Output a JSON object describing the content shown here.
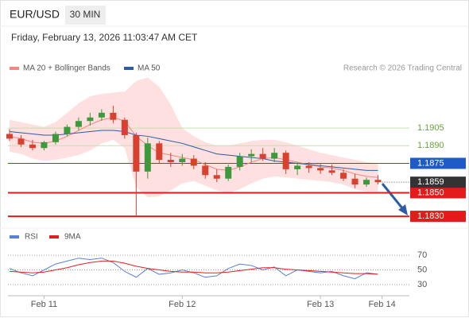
{
  "chart_data": {
    "type": "candlestick",
    "title": "EUR/USD",
    "timeframe": "30 MIN",
    "timestamp": "Friday, February 13, 2026 11:03:47 AM CET",
    "copyright": "Research © 2026 Trading Central",
    "x": [
      -6,
      -4,
      -2,
      0,
      2,
      4,
      6,
      8,
      10,
      12,
      14,
      16,
      18,
      20,
      22,
      24,
      26,
      28,
      30,
      32,
      34,
      36,
      38,
      40,
      42,
      44,
      46,
      48,
      50,
      52,
      54,
      56,
      58
    ],
    "xlim": [
      -6,
      60
    ],
    "xticks": [
      {
        "value": 0,
        "label": "Feb 11"
      },
      {
        "value": 24,
        "label": "Feb 12"
      },
      {
        "value": 48,
        "label": "Feb 13"
      },
      {
        "value": 58.7,
        "label": "Feb 14"
      }
    ],
    "ylim": [
      1.1826,
      1.1926
    ],
    "up_color": "#3c9a3c",
    "down_color": "#d9412f",
    "open": [
      1.19,
      1.1896,
      1.1891,
      1.1888,
      1.1893,
      1.19,
      1.1906,
      1.1911,
      1.1914,
      1.1918,
      1.1912,
      1.1899,
      1.1868,
      1.1892,
      1.1878,
      1.1876,
      1.1879,
      1.1873,
      1.1865,
      1.1862,
      1.1872,
      1.1881,
      1.1883,
      1.1879,
      1.1884,
      1.187,
      1.1873,
      1.1871,
      1.1869,
      1.1867,
      1.1862,
      1.1857,
      1.1861
    ],
    "high": [
      1.1904,
      1.1899,
      1.1895,
      1.1894,
      1.1902,
      1.1908,
      1.1914,
      1.1918,
      1.1921,
      1.1924,
      1.1914,
      1.1901,
      1.1897,
      1.1894,
      1.1884,
      1.1883,
      1.1882,
      1.1876,
      1.187,
      1.1874,
      1.1884,
      1.1887,
      1.1888,
      1.1888,
      1.1886,
      1.1876,
      1.1876,
      1.1875,
      1.1874,
      1.187,
      1.1866,
      1.1863,
      1.1865
    ],
    "low": [
      1.1894,
      1.1889,
      1.1886,
      1.1886,
      1.1891,
      1.1898,
      1.1903,
      1.1907,
      1.1911,
      1.1909,
      1.1896,
      1.183,
      1.1862,
      1.1875,
      1.1872,
      1.1873,
      1.187,
      1.1862,
      1.1859,
      1.186,
      1.1869,
      1.1876,
      1.1877,
      1.1876,
      1.1866,
      1.1865,
      1.1867,
      1.1866,
      1.1865,
      1.186,
      1.1854,
      1.1855,
      1.1857
    ],
    "close": [
      1.1896,
      1.1891,
      1.1888,
      1.1893,
      1.19,
      1.1906,
      1.1911,
      1.1914,
      1.1918,
      1.1912,
      1.1899,
      1.1868,
      1.1892,
      1.1878,
      1.1876,
      1.1879,
      1.1873,
      1.1865,
      1.1862,
      1.1872,
      1.1881,
      1.1883,
      1.1879,
      1.1884,
      1.187,
      1.1873,
      1.1871,
      1.1869,
      1.1867,
      1.1862,
      1.1857,
      1.1861,
      1.1859
    ],
    "series": [
      {
        "name": "MA 20 + Bollinger Bands",
        "color": "#f4877f",
        "band_color": "#fde0df",
        "values": [
          1.1898,
          1.1896,
          1.1893,
          1.1892,
          1.1894,
          1.1898,
          1.1903,
          1.1908,
          1.1912,
          1.1914,
          1.1911,
          1.1898,
          1.189,
          1.1884,
          1.1882,
          1.188,
          1.1878,
          1.1874,
          1.187,
          1.1869,
          1.1872,
          1.1876,
          1.1879,
          1.188,
          1.1878,
          1.1876,
          1.1874,
          1.1872,
          1.1871,
          1.1869,
          1.1866,
          1.1864,
          1.1863
        ],
        "upper": [
          1.1912,
          1.191,
          1.1908,
          1.1906,
          1.191,
          1.1918,
          1.1926,
          1.1932,
          1.1934,
          1.1935,
          1.1936,
          1.1945,
          1.1948,
          1.194,
          1.1925,
          1.1905,
          1.1898,
          1.1893,
          1.189,
          1.189,
          1.1892,
          1.1894,
          1.1895,
          1.1895,
          1.1893,
          1.189,
          1.1887,
          1.1884,
          1.1882,
          1.188,
          1.1878,
          1.1876,
          1.1875
        ],
        "lower": [
          1.1885,
          1.1883,
          1.1879,
          1.1877,
          1.1878,
          1.188,
          1.1882,
          1.1886,
          1.1892,
          1.1895,
          1.1888,
          1.1855,
          1.1846,
          1.1847,
          1.1852,
          1.1858,
          1.186,
          1.1856,
          1.1852,
          1.185,
          1.1853,
          1.1858,
          1.1862,
          1.1864,
          1.1863,
          1.1862,
          1.1861,
          1.186,
          1.1859,
          1.1857,
          1.1853,
          1.1851,
          1.1851
        ]
      },
      {
        "name": "MA 50",
        "color": "#2b5ca8",
        "values": [
          1.1902,
          1.1901,
          1.19,
          1.1899,
          1.1899,
          1.19,
          1.1901,
          1.1902,
          1.1903,
          1.1903,
          1.1902,
          1.1899,
          1.1898,
          1.1896,
          1.1894,
          1.1892,
          1.1889,
          1.1886,
          1.1883,
          1.1882,
          1.1881,
          1.188,
          1.1879,
          1.1877,
          1.1876,
          1.1875,
          1.1874,
          1.1873,
          1.1872,
          1.1871,
          1.187,
          1.1869,
          1.1869
        ]
      }
    ],
    "levels": [
      {
        "value": 1.1905,
        "color": "#6aa53a",
        "line": "thin"
      },
      {
        "value": 1.189,
        "label": "1.1890",
        "color": "#6aa53a",
        "line": "thin"
      },
      {
        "value": 1.1875,
        "color": "#1e5bc6",
        "line": "box"
      },
      {
        "value": 1.185,
        "label": "1.1850",
        "color": "#e31b1b",
        "line": "thick"
      },
      {
        "value": 1.183,
        "label": "1.1830",
        "color": "#e31b1b",
        "line": "thick"
      }
    ],
    "current": {
      "value": 1.1859,
      "color": "#333333"
    },
    "rsi": {
      "type": "line",
      "ylim": [
        20,
        80
      ],
      "yticks": [
        30,
        50,
        70
      ],
      "series": [
        {
          "name": "RSI",
          "color": "#5b7fd6",
          "values": [
            52,
            46,
            42,
            50,
            58,
            62,
            66,
            64,
            66,
            60,
            48,
            40,
            52,
            44,
            46,
            50,
            46,
            40,
            42,
            52,
            58,
            56,
            50,
            54,
            42,
            50,
            48,
            46,
            48,
            42,
            38,
            46,
            44
          ]
        },
        {
          "name": "9MA",
          "color": "#e02020",
          "values": [
            48,
            47,
            46,
            47,
            50,
            53,
            57,
            60,
            62,
            62,
            59,
            55,
            52,
            50,
            48,
            47,
            47,
            46,
            46,
            47,
            49,
            51,
            53,
            53,
            51,
            50,
            49,
            48,
            47,
            46,
            45,
            45,
            44
          ]
        }
      ]
    }
  }
}
